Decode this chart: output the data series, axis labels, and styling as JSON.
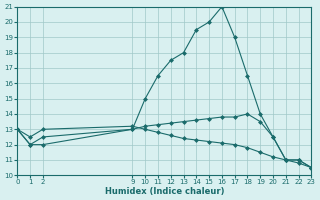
{
  "xlabel": "Humidex (Indice chaleur)",
  "bg_color": "#d9f0f0",
  "grid_color": "#a0c8c8",
  "line_color": "#1a6b6b",
  "xlim": [
    0,
    23
  ],
  "ylim": [
    10,
    21
  ],
  "yticks": [
    10,
    11,
    12,
    13,
    14,
    15,
    16,
    17,
    18,
    19,
    20,
    21
  ],
  "xticks": [
    0,
    1,
    2,
    9,
    10,
    11,
    12,
    13,
    14,
    15,
    16,
    17,
    18,
    19,
    20,
    21,
    22,
    23
  ],
  "series": [
    {
      "x": [
        0,
        1,
        2,
        9,
        10,
        11,
        12,
        13,
        14,
        15,
        16,
        17,
        18,
        19,
        20,
        21,
        22,
        23
      ],
      "y": [
        13,
        12,
        12,
        13,
        15,
        16.5,
        17.5,
        18,
        19.5,
        20,
        21,
        19,
        16.5,
        14,
        12.5,
        11,
        11,
        10.5
      ]
    },
    {
      "x": [
        0,
        1,
        2,
        9,
        10,
        11,
        12,
        13,
        14,
        15,
        16,
        17,
        18,
        19,
        20,
        21,
        22,
        23
      ],
      "y": [
        13,
        12,
        12.5,
        13,
        13.2,
        13.3,
        13.4,
        13.5,
        13.6,
        13.7,
        13.8,
        13.8,
        14.0,
        13.5,
        12.5,
        11,
        11,
        10.5
      ]
    },
    {
      "x": [
        0,
        1,
        2,
        9,
        10,
        11,
        12,
        13,
        14,
        15,
        16,
        17,
        18,
        19,
        20,
        21,
        22,
        23
      ],
      "y": [
        13,
        12.5,
        13,
        13.2,
        13.0,
        12.8,
        12.6,
        12.4,
        12.3,
        12.2,
        12.1,
        12.0,
        11.8,
        11.5,
        11.2,
        11.0,
        10.8,
        10.5
      ]
    }
  ]
}
